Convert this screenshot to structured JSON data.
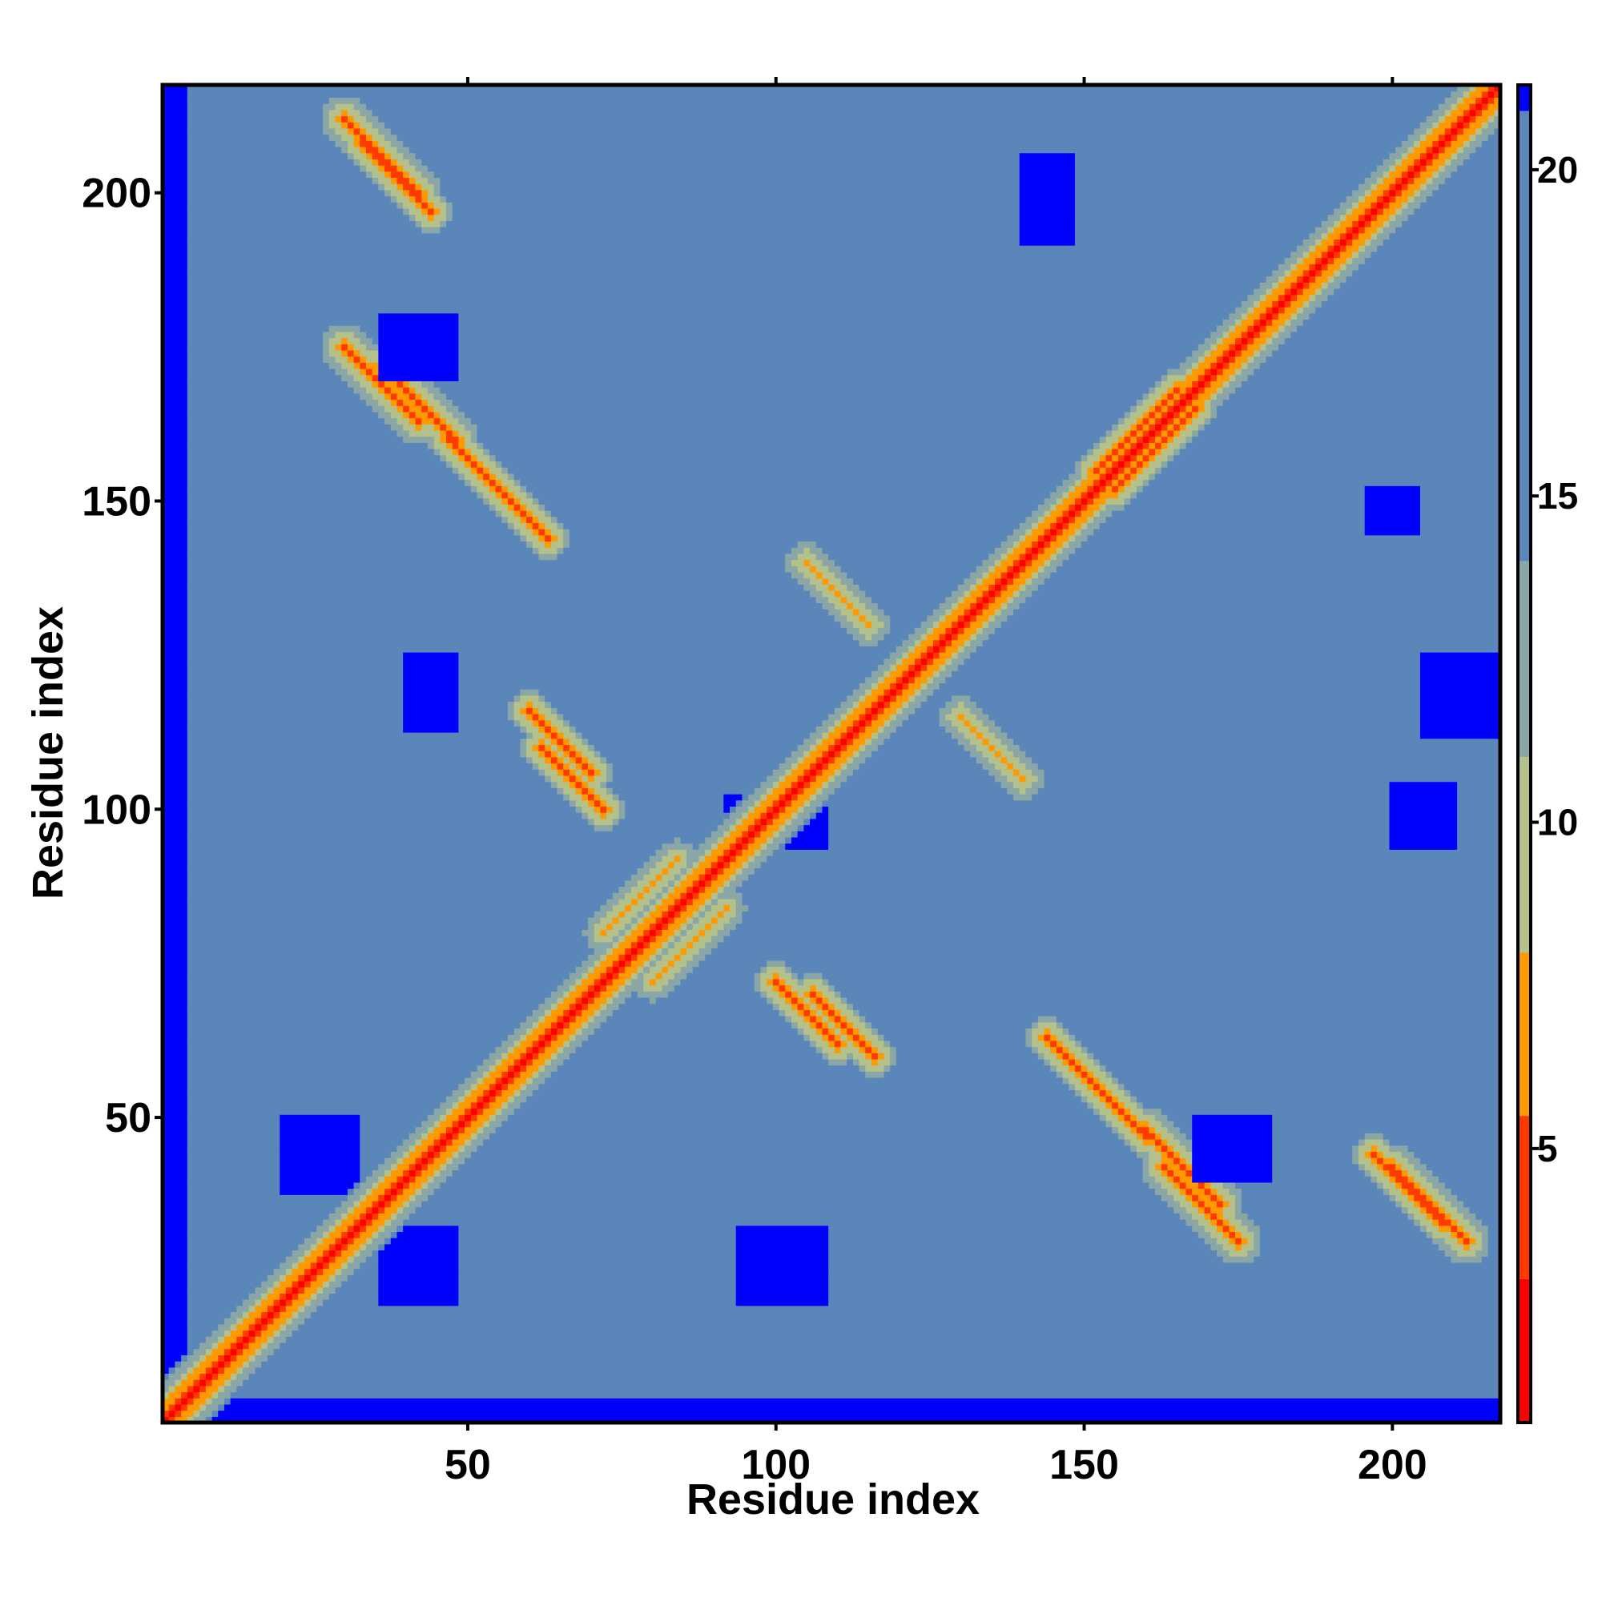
{
  "chart_data": {
    "type": "heatmap",
    "title": "",
    "xlabel": "Residue index",
    "ylabel": "Residue index",
    "n_residues": 217,
    "xlim": [
      1,
      217
    ],
    "ylim": [
      1,
      217
    ],
    "x_ticks": [
      50,
      100,
      150,
      200
    ],
    "y_ticks": [
      50,
      100,
      150,
      200
    ],
    "x_tick_labels": [
      "50",
      "100",
      "150",
      "200"
    ],
    "y_tick_labels": [
      "50",
      "100",
      "150",
      "200"
    ],
    "colorbar": {
      "range": [
        0.8,
        21.3
      ],
      "ticks": [
        5,
        10,
        15,
        20
      ],
      "tick_labels": [
        "5",
        "10",
        "15",
        "20"
      ],
      "colors": [
        {
          "from": 0.8,
          "to": 3.0,
          "color": "#ff0000"
        },
        {
          "from": 3.0,
          "to": 5.5,
          "color": "#ff3a00"
        },
        {
          "from": 5.5,
          "to": 8.0,
          "color": "#ff9900"
        },
        {
          "from": 8.0,
          "to": 11.0,
          "color": "#b5c18b"
        },
        {
          "from": 11.0,
          "to": 14.0,
          "color": "#8aa6a6"
        },
        {
          "from": 14.0,
          "to": 20.9,
          "color": "#5b86ba"
        },
        {
          "from": 20.9,
          "to": 21.3,
          "color": "#0000ff"
        }
      ]
    },
    "value_encoding": "Residue-residue distance map. Symmetric matrix; value increases with sequence separation except where structural contacts bring residues close; far pairs saturate at 21.",
    "contact_bands": [
      {
        "i": [
          1,
          217
        ],
        "j_offset": 0,
        "value": 1.0,
        "note": "main diagonal"
      },
      {
        "i": [
          1,
          217
        ],
        "j_offset": 1,
        "value": 3.8
      },
      {
        "i": [
          1,
          217
        ],
        "j_offset": 2,
        "value": 5.6
      },
      {
        "i": [
          1,
          217
        ],
        "j_offset": 3,
        "value": 7.5
      },
      {
        "i": [
          1,
          217
        ],
        "j_offset": 4,
        "value": 9.5
      },
      {
        "i": [
          1,
          217
        ],
        "j_offset": 5,
        "value": 12.0
      }
    ],
    "off_diagonal_contacts": [
      {
        "i": [
          30,
          42
        ],
        "j": [
          200,
          212
        ],
        "min_value": 4.5,
        "orientation": "anti"
      },
      {
        "i": [
          30,
          42
        ],
        "j": [
          163,
          175
        ],
        "min_value": 4.5,
        "orientation": "anti"
      },
      {
        "i": [
          47,
          63
        ],
        "j": [
          142,
          160
        ],
        "min_value": 5.0,
        "orientation": "anti"
      },
      {
        "i": [
          62,
          72
        ],
        "j": [
          100,
          110
        ],
        "min_value": 5.0,
        "orientation": "anti"
      },
      {
        "i": [
          106,
          116
        ],
        "j": [
          60,
          70
        ],
        "min_value": 5.0,
        "orientation": "anti"
      },
      {
        "i": [
          130,
          140
        ],
        "j": [
          105,
          115
        ],
        "min_value": 5.5,
        "orientation": "anti"
      },
      {
        "i": [
          160,
          172
        ],
        "j": [
          35,
          48
        ],
        "min_value": 4.5,
        "orientation": "anti"
      },
      {
        "i": [
          197,
          210
        ],
        "j": [
          33,
          44
        ],
        "min_value": 5.0,
        "orientation": "anti"
      },
      {
        "i": [
          155,
          168
        ],
        "j": [
          152,
          168
        ],
        "min_value": 5.0,
        "orientation": "cross"
      },
      {
        "i": [
          80,
          92
        ],
        "j": [
          72,
          84
        ],
        "min_value": 6.0,
        "orientation": "cross"
      }
    ],
    "far_regions": [
      {
        "i": [
          20,
          32
        ],
        "j": [
          38,
          50
        ],
        "value": 21
      },
      {
        "i": [
          36,
          48
        ],
        "j": [
          20,
          32
        ],
        "value": 21
      },
      {
        "i": [
          94,
          108
        ],
        "j": [
          20,
          32
        ],
        "value": 21
      },
      {
        "i": [
          36,
          48
        ],
        "j": [
          170,
          180
        ],
        "value": 21
      },
      {
        "i": [
          40,
          48
        ],
        "j": [
          113,
          125
        ],
        "value": 21
      },
      {
        "i": [
          92,
          108
        ],
        "j": [
          94,
          102
        ],
        "value": 21
      },
      {
        "i": [
          140,
          148
        ],
        "j": [
          192,
          206
        ],
        "value": 21
      },
      {
        "i": [
          168,
          180
        ],
        "j": [
          40,
          50
        ],
        "value": 21
      },
      {
        "i": [
          196,
          204
        ],
        "j": [
          145,
          152
        ],
        "value": 21
      },
      {
        "i": [
          200,
          210
        ],
        "j": [
          94,
          104
        ],
        "value": 21
      },
      {
        "i": [
          205,
          218
        ],
        "j": [
          112,
          125
        ],
        "value": 21
      },
      {
        "i": [
          1,
          4
        ],
        "j": [
          1,
          217
        ],
        "value": 21
      },
      {
        "i": [
          1,
          217
        ],
        "j": [
          1,
          4
        ],
        "value": 21
      }
    ]
  }
}
